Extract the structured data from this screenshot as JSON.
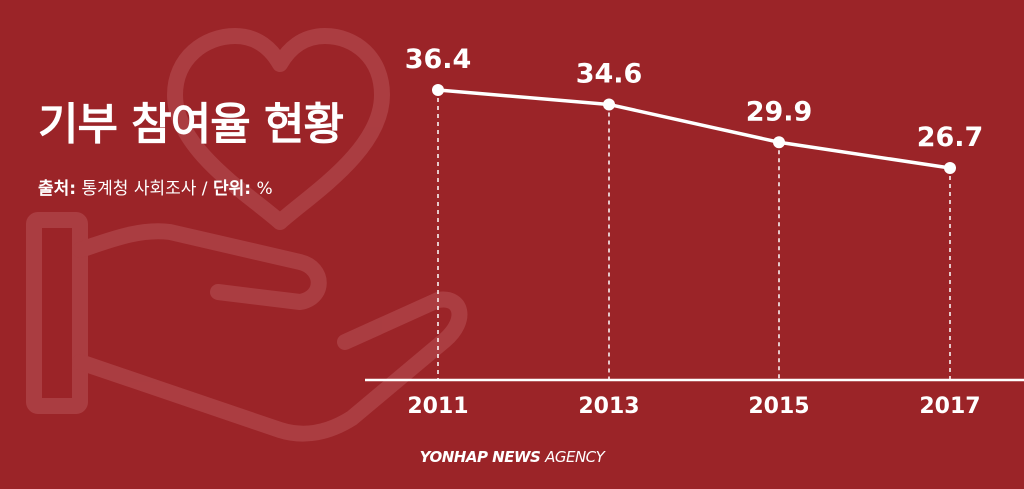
{
  "title": "기부 참여율 현황",
  "source": {
    "source_label": "출처",
    "source_value": "통계청 사회조사",
    "separator": "/",
    "unit_label": "단위",
    "unit_value": "%"
  },
  "footer": {
    "brand_bold": "YONHAP NEWS",
    "brand_light": "AGENCY"
  },
  "colors": {
    "background": "#9b2428",
    "line": "#ffffff",
    "art": "#b0464a"
  },
  "icons": [
    "heart-icon",
    "hand-icon"
  ],
  "chart_data": {
    "type": "line",
    "title": "기부 참여율 현황",
    "xlabel": "",
    "ylabel": "",
    "unit": "%",
    "categories": [
      "2011",
      "2013",
      "2015",
      "2017"
    ],
    "values": [
      36.4,
      34.6,
      29.9,
      26.7
    ],
    "value_labels": [
      "36.4",
      "34.6",
      "29.9",
      "26.7"
    ],
    "grid": false,
    "legend": "none"
  }
}
